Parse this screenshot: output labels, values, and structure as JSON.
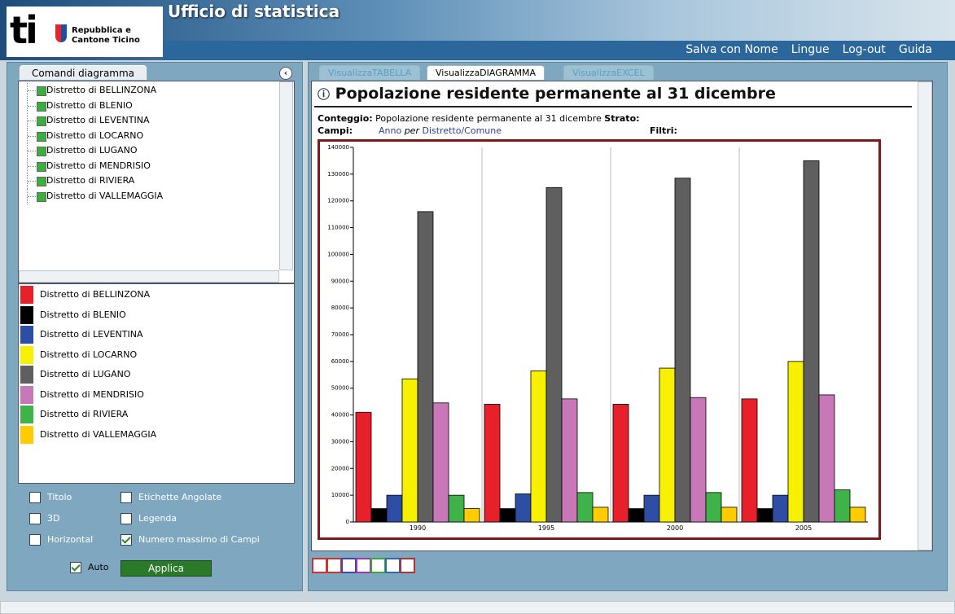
{
  "header": {
    "logo_text": "ti",
    "org_line1": "Repubblica e",
    "org_line2": "Cantone Ticino",
    "app_title": "Ufficio di statistica",
    "menu": [
      "Salva con Nome",
      "Lingue",
      "Log-out",
      "Guida"
    ]
  },
  "sidebar": {
    "tab": "Comandi diagramma",
    "tree": [
      "Distretto di BELLINZONA",
      "Distretto di BLENIO",
      "Distretto di LEVENTINA",
      "Distretto di LOCARNO",
      "Distretto di LUGANO",
      "Distretto di MENDRISIO",
      "Distretto di RIVIERA",
      "Distretto di VALLEMAGGIA"
    ],
    "options": [
      {
        "label": "Titolo",
        "checked": false
      },
      {
        "label": "Etichette Angolate",
        "checked": false
      },
      {
        "label": "3D",
        "checked": false
      },
      {
        "label": "Legenda",
        "checked": false
      },
      {
        "label": "Horizontal",
        "checked": false
      },
      {
        "label": "Numero massimo di Campi",
        "checked": true
      },
      {
        "label": "Auto",
        "checked": true
      }
    ],
    "button": "Applica"
  },
  "tabs": [
    "VisualizzaTABELLA",
    "VisualizzaDIAGRAMMA",
    "VisualizzaEXCEL"
  ],
  "info": {
    "count_label": "Conteggio:",
    "count_value": "Popolazione residente permanente al 31 dicembre",
    "layer_label": "Strato:",
    "fields_label": "Campi:",
    "fields_a": "Anno",
    "fields_per": "per",
    "fields_b": "Distretto/Comune",
    "filters_label": "Filtri:"
  },
  "chart_data": {
    "type": "bar",
    "title": "Popolazione residente permanente al 31 dicembre",
    "categories": [
      "1990",
      "1995",
      "2000",
      "2005"
    ],
    "series": [
      {
        "name": "Distretto di BELLINZONA",
        "color": "#e8202a",
        "values": [
          41000,
          44000,
          44000,
          46000
        ]
      },
      {
        "name": "Distretto di BLENIO",
        "color": "#000000",
        "values": [
          5000,
          5000,
          5000,
          5000
        ]
      },
      {
        "name": "Distretto di LEVENTINA",
        "color": "#2e4ea5",
        "values": [
          10000,
          10500,
          10000,
          10000
        ]
      },
      {
        "name": "Distretto di LOCARNO",
        "color": "#f7f000",
        "values": [
          53500,
          56500,
          57500,
          60000
        ]
      },
      {
        "name": "Distretto di LUGANO",
        "color": "#5f5f5f",
        "values": [
          116000,
          125000,
          128500,
          135000
        ]
      },
      {
        "name": "Distretto di MENDRISIO",
        "color": "#c878b8",
        "values": [
          44500,
          46000,
          46500,
          47500
        ]
      },
      {
        "name": "Distretto di RIVIERA",
        "color": "#3fb34a",
        "values": [
          10000,
          11000,
          11000,
          12000
        ]
      },
      {
        "name": "Distretto di VALLEMAGGIA",
        "color": "#ffcc00",
        "values": [
          5000,
          5500,
          5500,
          5500
        ]
      }
    ],
    "ylim": [
      0,
      140000
    ],
    "yticks": [
      0,
      10000,
      20000,
      30000,
      40000,
      50000,
      60000,
      70000,
      80000,
      90000,
      100000,
      110000,
      120000,
      130000,
      140000
    ]
  }
}
